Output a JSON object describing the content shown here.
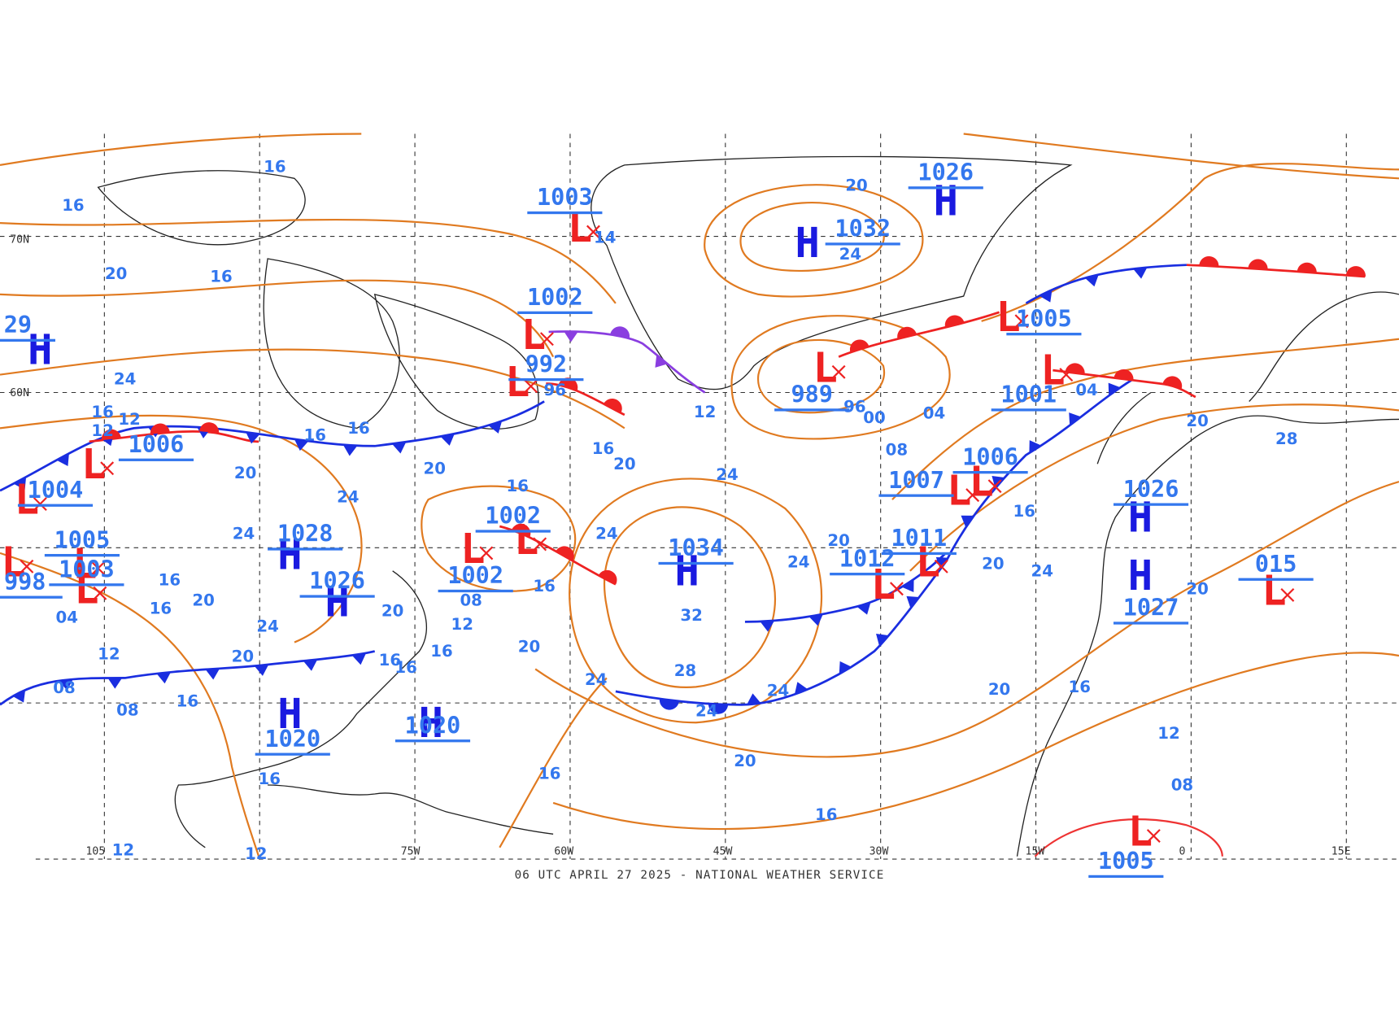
{
  "pressure_centers": [
    {
      "symbol": "H",
      "pressure": "1026"
    },
    {
      "symbol": "H",
      "pressure": "1032"
    },
    {
      "symbol": "L",
      "pressure": "1003"
    },
    {
      "symbol": "L",
      "pressure": "1002"
    },
    {
      "symbol": "L",
      "pressure": "992"
    },
    {
      "symbol": "H",
      "pressure": "29"
    },
    {
      "symbol": "L",
      "pressure": "989"
    },
    {
      "symbol": "L",
      "pressure": "1005"
    },
    {
      "symbol": "L",
      "pressure": "1001"
    },
    {
      "symbol": "L",
      "pressure": "1006"
    },
    {
      "symbol": "L",
      "pressure": "1007"
    },
    {
      "symbol": "L",
      "pressure": "1011"
    },
    {
      "symbol": "L",
      "pressure": "1012"
    },
    {
      "symbol": "H",
      "pressure": "1026"
    },
    {
      "symbol": "H",
      "pressure": "1027"
    },
    {
      "symbol": "L",
      "pressure": "015"
    },
    {
      "symbol": "H",
      "pressure": "1034"
    },
    {
      "symbol": "L",
      "pressure": "1002"
    },
    {
      "symbol": "L",
      "pressure": "1002"
    },
    {
      "symbol": "H",
      "pressure": "1026"
    },
    {
      "symbol": "H",
      "pressure": "1028"
    },
    {
      "symbol": "L",
      "pressure": "1004"
    },
    {
      "symbol": "L",
      "pressure": "1006"
    },
    {
      "symbol": "L",
      "pressure": "1005"
    },
    {
      "symbol": "L",
      "pressure": "1003"
    },
    {
      "symbol": "L",
      "pressure": "998"
    },
    {
      "symbol": "H",
      "pressure": "1020"
    },
    {
      "symbol": "H",
      "pressure": "1020"
    },
    {
      "symbol": "L",
      "pressure": "1005"
    }
  ],
  "isobar_labels": [
    "16",
    "16",
    "20",
    "16",
    "24",
    "16",
    "12",
    "12",
    "16",
    "16",
    "20",
    "20",
    "24",
    "24",
    "16",
    "20",
    "16",
    "24",
    "24",
    "12",
    "20",
    "24",
    "96",
    "96",
    "00",
    "04",
    "08",
    "16",
    "20",
    "24",
    "20",
    "28",
    "20",
    "16",
    "12",
    "08",
    "20",
    "24",
    "20",
    "32",
    "28",
    "24",
    "24",
    "24",
    "20",
    "16",
    "16",
    "20",
    "16",
    "12",
    "16",
    "16",
    "16",
    "08",
    "20",
    "24",
    "20",
    "16",
    "16",
    "12",
    "04",
    "08",
    "08",
    "16",
    "20",
    "16",
    "12",
    "12",
    "14",
    "04"
  ],
  "longitude_labels": [
    "105",
    "75W",
    "60W",
    "45W",
    "30W",
    "15W",
    "0",
    "15E"
  ],
  "latitude_labels": [
    "70N",
    "60N"
  ],
  "footer": "06 UTC APRIL 27 2025 - NATIONAL WEATHER SERVICE"
}
